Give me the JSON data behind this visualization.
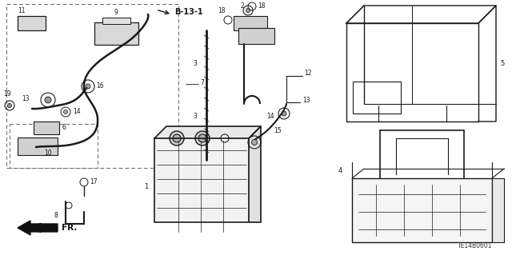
{
  "bg_color": "#ffffff",
  "line_color": "#1a1a1a",
  "title_code": "TE14B0601"
}
